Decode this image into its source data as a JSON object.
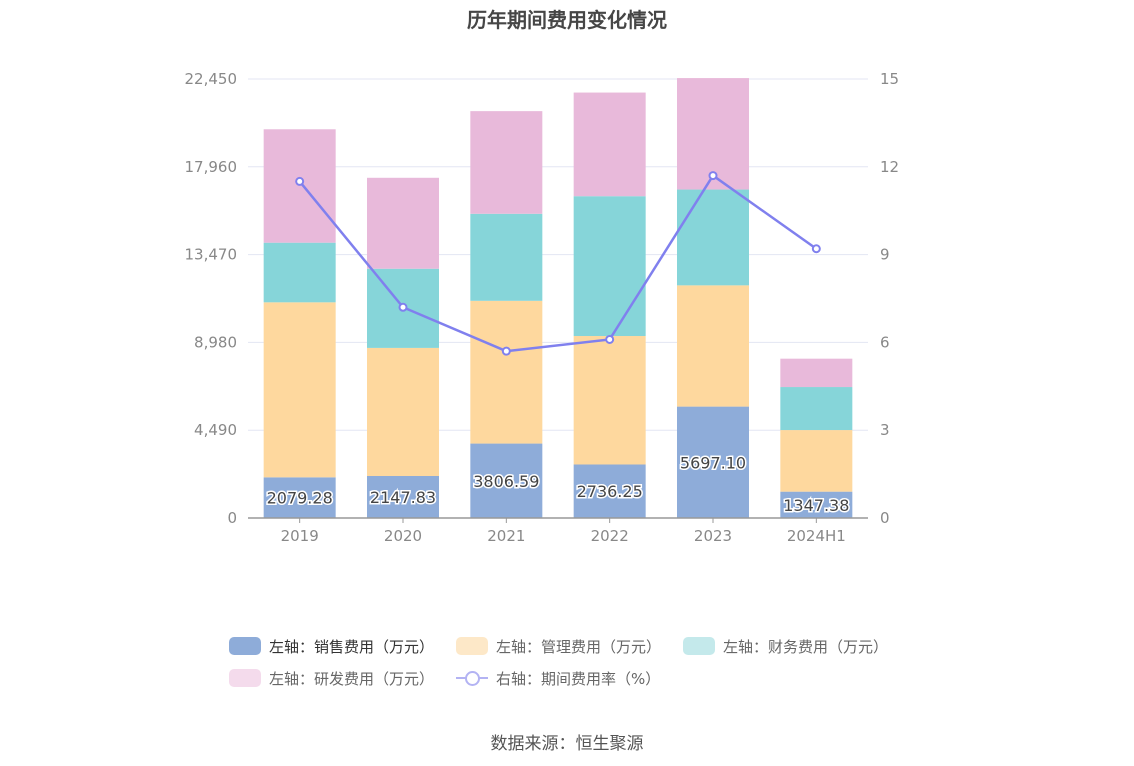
{
  "title": "历年期间费用变化情况",
  "source": "数据来源：恒生聚源",
  "chart_data": {
    "type": "bar",
    "stacked": true,
    "categories": [
      "2019",
      "2020",
      "2021",
      "2022",
      "2023",
      "2024H1"
    ],
    "left_axis": {
      "min": 0,
      "max": 22450,
      "ticks": [
        "0",
        "4,490",
        "8,980",
        "13,470",
        "17,960",
        "22,450"
      ],
      "tick_values": [
        0,
        4490,
        8980,
        13470,
        17960,
        22450
      ]
    },
    "right_axis": {
      "min": 0,
      "max": 15,
      "ticks": [
        "0",
        "3",
        "6",
        "9",
        "12",
        "15"
      ],
      "tick_values": [
        0,
        3,
        6,
        9,
        12,
        15
      ]
    },
    "series": [
      {
        "name": "左轴：销售费用（万元）",
        "color": "#8eacd9",
        "values": [
          2079.28,
          2147.83,
          3806.59,
          2736.25,
          5697.1,
          1347.38
        ],
        "labels": [
          "2079.28",
          "2147.83",
          "3806.59",
          "2736.25",
          "5697.10",
          "1347.38"
        ]
      },
      {
        "name": "左轴：管理费用（万元）",
        "color": "#fed89e",
        "values": [
          8950,
          6550,
          7300,
          6570,
          6200,
          3150
        ]
      },
      {
        "name": "左轴：财务费用（万元）",
        "color": "#86d5d9",
        "values": [
          3050,
          4050,
          4450,
          7150,
          4900,
          2200
        ]
      },
      {
        "name": "左轴：研发费用（万元）",
        "color": "#e8b9da",
        "values": [
          5800,
          4650,
          5250,
          5300,
          5700,
          1450
        ]
      }
    ],
    "line_series": {
      "name": "右轴：期间费用率（%）",
      "color": "#8080ee",
      "values": [
        11.5,
        7.2,
        5.7,
        6.1,
        11.7,
        9.2
      ]
    },
    "grid": true,
    "legend_position": "bottom"
  }
}
